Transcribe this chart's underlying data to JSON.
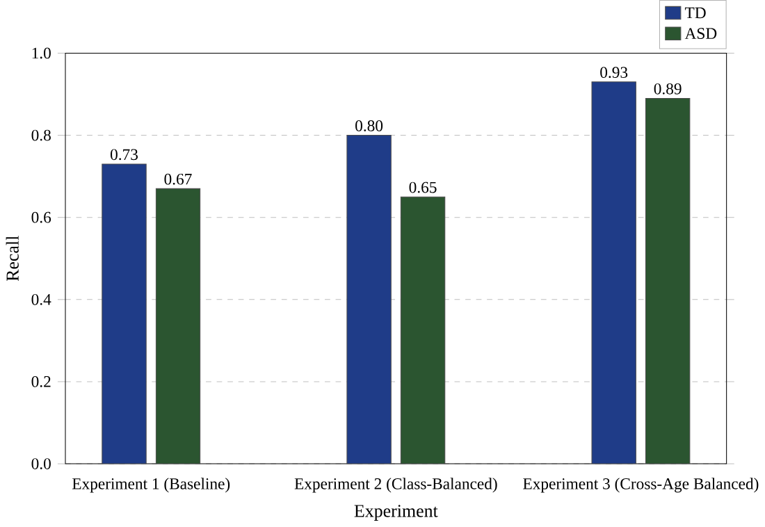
{
  "chart_data": {
    "type": "bar",
    "xlabel": "Experiment",
    "ylabel": "Recall",
    "categories": [
      "Experiment 1 (Baseline)",
      "Experiment 2 (Class-Balanced)",
      "Experiment 3 (Cross-Age Balanced)"
    ],
    "series": [
      {
        "name": "TD",
        "color": "#1f3c88",
        "values": [
          0.73,
          0.8,
          0.93
        ],
        "value_labels": [
          "0.73",
          "0.80",
          "0.93"
        ]
      },
      {
        "name": "ASD",
        "color": "#2b5530",
        "values": [
          0.67,
          0.65,
          0.89
        ],
        "value_labels": [
          "0.67",
          "0.65",
          "0.89"
        ]
      }
    ],
    "ylim": [
      0,
      1.0
    ],
    "yticks": [
      {
        "value": 0,
        "label": "0.0"
      },
      {
        "value": 0.2,
        "label": "0.2"
      },
      {
        "value": 0.4,
        "label": "0.4"
      },
      {
        "value": 0.6,
        "label": "0.6"
      },
      {
        "value": 0.8,
        "label": "0.8"
      },
      {
        "value": 1.0,
        "label": "1.0"
      }
    ],
    "grid": "y",
    "legend": "top right"
  }
}
